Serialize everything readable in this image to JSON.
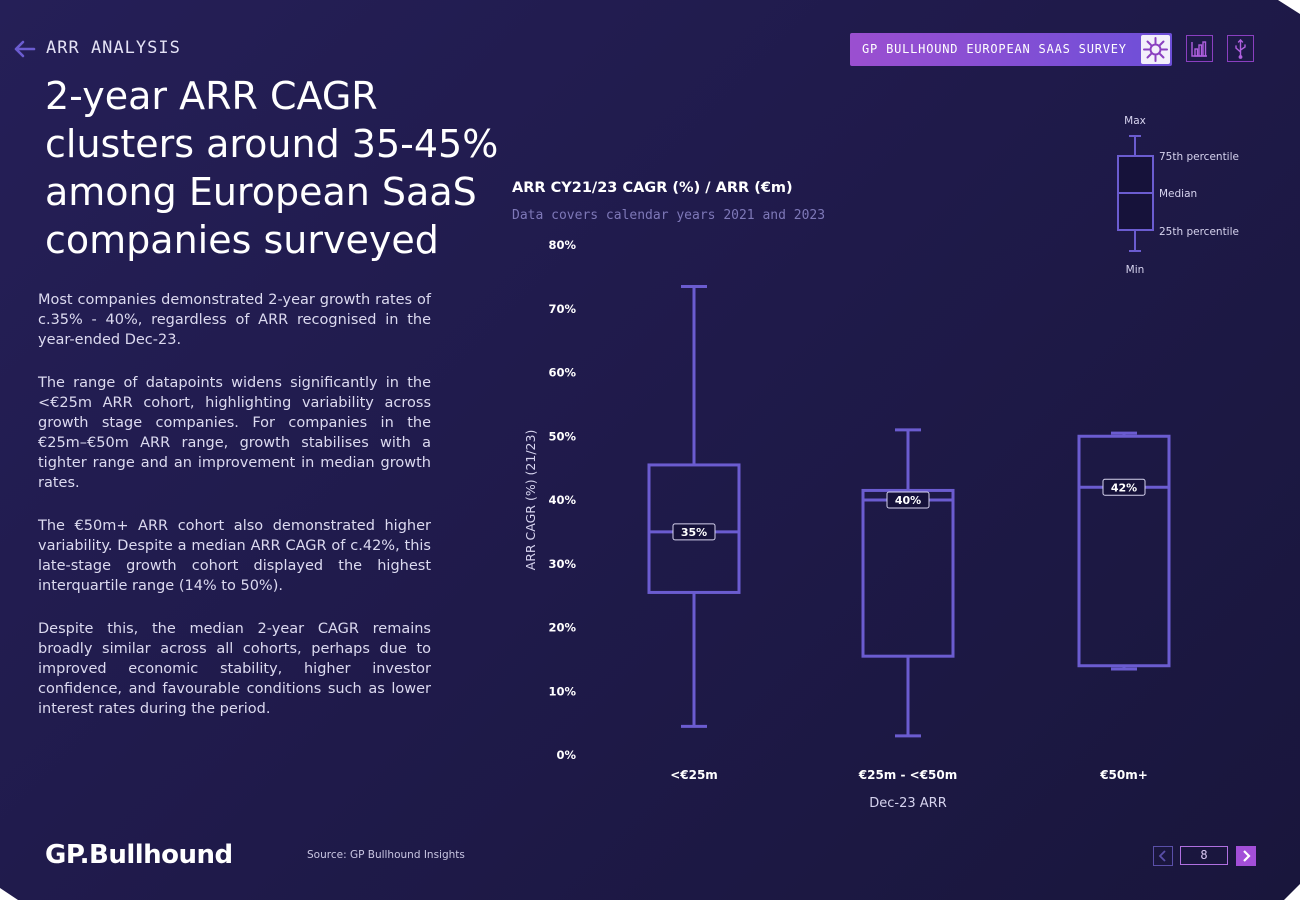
{
  "header": {
    "section": "ARR ANALYSIS",
    "survey_button": "GP BULLHOUND EUROPEAN SAAS SURVEY"
  },
  "headline": "2-year ARR CAGR clusters around 35-45% among European SaaS companies surveyed",
  "body": [
    "Most companies demonstrated 2-year growth rates of c.35% - 40%, regardless of ARR recognised in the year-ended Dec-23.",
    "The range of datapoints widens significantly in the <€25m ARR cohort, highlighting variability across growth stage companies. For companies in the €25m–€50m ARR range, growth stabilises with a tighter range and an improvement in median growth rates.",
    "The €50m+ ARR cohort also demonstrated higher variability. Despite a median ARR CAGR of c.42%, this late-stage growth cohort displayed the highest interquartile range (14% to 50%).",
    "Despite this, the median 2-year CAGR remains broadly similar across all cohorts, perhaps due to improved economic stability, higher investor confidence, and favourable conditions such as lower interest rates during the period."
  ],
  "legend": {
    "max": "Max",
    "q3": "75th percentile",
    "median": "Median",
    "q1": "25th percentile",
    "min": "Min"
  },
  "chart_data": {
    "type": "box",
    "title": "ARR CY21/23 CAGR (%) / ARR (€m)",
    "subtitle": "Data covers calendar years 2021 and 2023",
    "xlabel": "Dec-23 ARR",
    "ylabel": "ARR CAGR (%) (21/23)",
    "ylim": [
      0,
      80
    ],
    "y_ticks": [
      "0%",
      "10%",
      "20%",
      "30%",
      "40%",
      "50%",
      "60%",
      "70%",
      "80%"
    ],
    "categories": [
      "<€25m",
      "€25m - <€50m",
      "€50m+"
    ],
    "boxes": [
      {
        "min": 4.5,
        "q1": 25.5,
        "median": 35,
        "q3": 45.5,
        "max": 73.5,
        "label": "35%"
      },
      {
        "min": 3,
        "q1": 15.5,
        "median": 40,
        "q3": 41.5,
        "max": 51,
        "label": "40%"
      },
      {
        "min": 13.5,
        "q1": 14,
        "median": 42,
        "q3": 50,
        "max": 50.5,
        "label": "42%"
      }
    ],
    "color": "#6b5cd0",
    "grid": false
  },
  "footer": {
    "logo": "GP.Bullhound",
    "source": "Source: GP Bullhound Insights",
    "page_number": "8"
  }
}
